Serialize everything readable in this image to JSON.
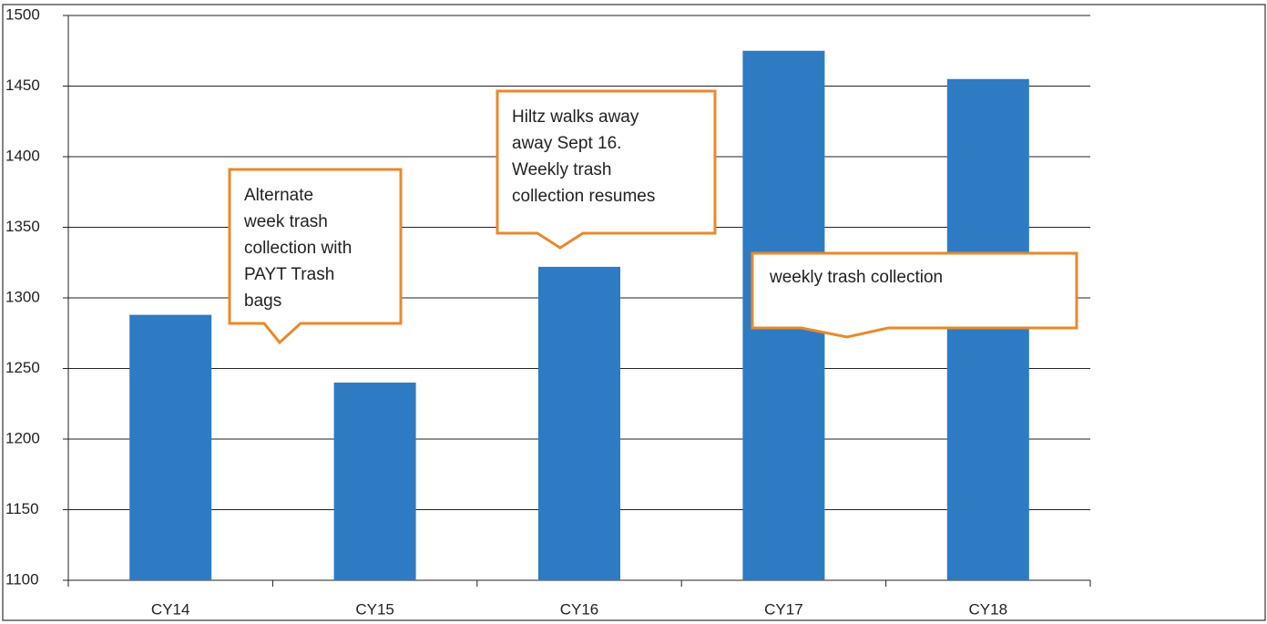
{
  "chart_data": {
    "type": "bar",
    "categories": [
      "CY14",
      "CY15",
      "CY16",
      "CY17",
      "CY18"
    ],
    "values": [
      1288,
      1240,
      1322,
      1475,
      1455
    ],
    "color": "#2e7bc4",
    "ylim": [
      1100,
      1500
    ],
    "yticks": [
      1100,
      1150,
      1200,
      1250,
      1300,
      1350,
      1400,
      1450,
      1500
    ],
    "grid": true,
    "annotations": [
      {
        "lines": [
          "Alternate",
          "week trash",
          "collection with",
          "PAYT Trash",
          "bags"
        ]
      },
      {
        "lines": [
          "Hiltz walks away",
          "away  Sept 16.",
          "Weekly trash",
          "collection resumes"
        ]
      },
      {
        "lines": [
          "weekly trash collection"
        ]
      }
    ]
  }
}
